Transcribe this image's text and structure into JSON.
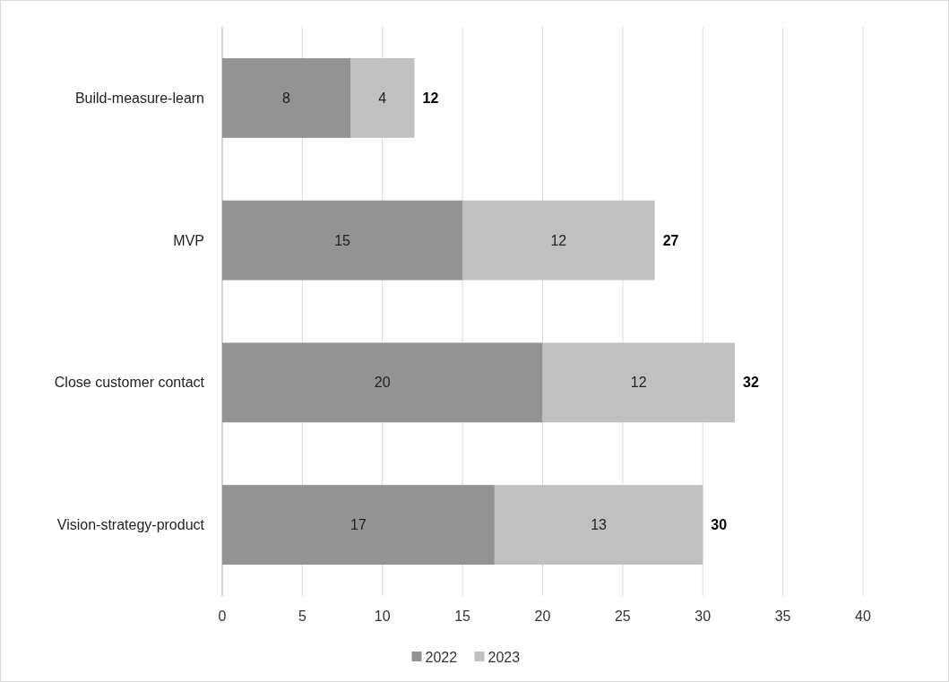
{
  "chart_data": {
    "type": "bar",
    "orientation": "horizontal",
    "stacked": true,
    "categories": [
      "Build-measure-learn",
      "MVP",
      "Close customer contact",
      "Vision-strategy-product"
    ],
    "series": [
      {
        "name": "2022",
        "color": "#939393",
        "values": [
          8,
          15,
          20,
          17
        ]
      },
      {
        "name": "2023",
        "color": "#c0c0c0",
        "values": [
          4,
          12,
          12,
          13
        ]
      }
    ],
    "totals": [
      "12",
      "27",
      "32",
      "30"
    ],
    "data_labels": true,
    "xlim": [
      0,
      40
    ],
    "xticks": [
      0,
      5,
      10,
      15,
      20,
      25,
      30,
      35,
      40
    ],
    "grid": "x",
    "legend": "bottom"
  }
}
